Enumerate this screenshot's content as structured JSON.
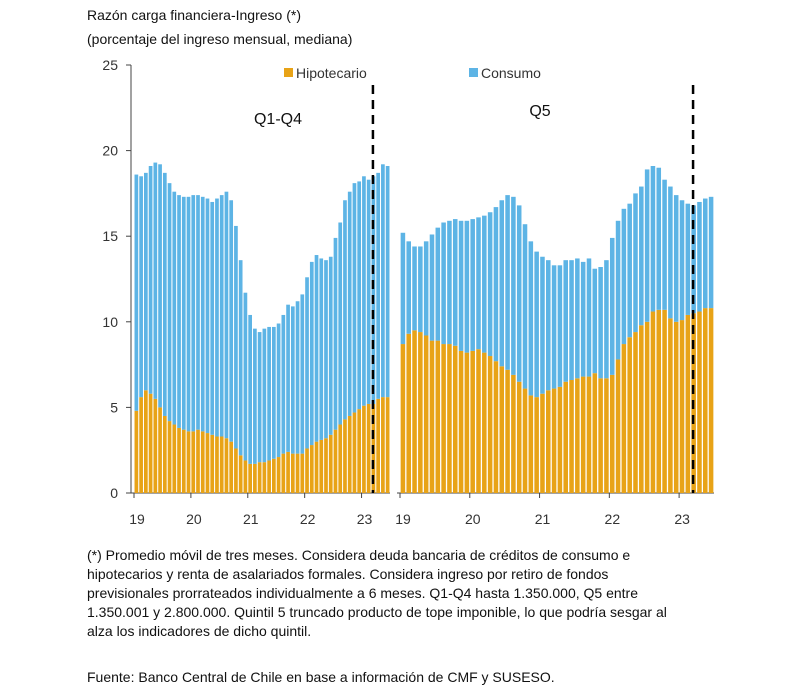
{
  "chart_data": {
    "type": "bar",
    "stacked": true,
    "title": "Razón carga financiera-Ingreso (*)",
    "subtitle": "(porcentaje del ingreso mensual, mediana)",
    "ylim": [
      0,
      25
    ],
    "yticks": [
      "0",
      "5",
      "10",
      "15",
      "20",
      "25"
    ],
    "xticks": [
      "19",
      "20",
      "21",
      "22",
      "23"
    ],
    "frequency": "monthly, Jan 2019 - Jun 2023",
    "legend": [
      {
        "name": "Hipotecario",
        "color": "#E8A317"
      },
      {
        "name": "Consumo",
        "color": "#5DB4E5"
      }
    ],
    "legend_placement": "top",
    "panels": [
      {
        "label": "Q1-Q4",
        "dashed_line_at": 2023.2,
        "series": [
          {
            "name": "Hipotecario",
            "values": [
              4.8,
              5.6,
              6.0,
              5.8,
              5.5,
              5.0,
              4.5,
              4.2,
              4.0,
              3.8,
              3.7,
              3.6,
              3.6,
              3.7,
              3.6,
              3.5,
              3.4,
              3.3,
              3.3,
              3.2,
              3.0,
              2.6,
              2.2,
              1.9,
              1.7,
              1.7,
              1.8,
              1.8,
              1.9,
              2.0,
              2.1,
              2.3,
              2.4,
              2.3,
              2.3,
              2.3,
              2.6,
              2.8,
              3.0,
              3.1,
              3.2,
              3.4,
              3.7,
              4.0,
              4.3,
              4.5,
              4.7,
              4.9,
              5.1,
              5.2,
              5.2,
              5.5,
              5.6,
              5.6
            ]
          },
          {
            "name": "Consumo",
            "values": [
              13.8,
              12.9,
              12.7,
              13.3,
              13.8,
              14.2,
              14.2,
              13.9,
              13.6,
              13.6,
              13.6,
              13.7,
              13.8,
              13.7,
              13.7,
              13.7,
              13.6,
              13.9,
              14.1,
              14.4,
              14.1,
              13.0,
              11.4,
              9.8,
              8.7,
              7.9,
              7.6,
              7.8,
              7.8,
              7.7,
              7.8,
              8.1,
              8.6,
              8.6,
              8.9,
              9.3,
              10.0,
              10.7,
              10.9,
              10.6,
              10.4,
              10.4,
              11.2,
              11.8,
              12.8,
              13.1,
              13.4,
              13.3,
              13.4,
              13.1,
              13.3,
              13.2,
              13.6,
              13.5
            ]
          }
        ]
      },
      {
        "label": "Q5",
        "dashed_line_at": 2023.2,
        "series": [
          {
            "name": "Hipotecario",
            "values": [
              8.7,
              9.3,
              9.5,
              9.4,
              9.2,
              8.9,
              8.9,
              8.7,
              8.7,
              8.6,
              8.3,
              8.2,
              8.3,
              8.4,
              8.2,
              8.0,
              7.7,
              7.4,
              7.2,
              6.9,
              6.5,
              6.1,
              5.7,
              5.6,
              5.8,
              6.0,
              6.1,
              6.2,
              6.5,
              6.6,
              6.7,
              6.8,
              6.8,
              7.0,
              6.7,
              6.7,
              6.9,
              7.8,
              8.7,
              9.1,
              9.4,
              9.8,
              10.0,
              10.6,
              10.7,
              10.7,
              10.2,
              10.0,
              10.1,
              10.4,
              10.5,
              10.6,
              10.8,
              10.8
            ]
          },
          {
            "name": "Consumo",
            "values": [
              6.5,
              5.4,
              4.9,
              5.0,
              5.5,
              6.2,
              6.6,
              7.1,
              7.2,
              7.4,
              7.6,
              7.7,
              7.7,
              7.7,
              8.0,
              8.4,
              9.0,
              9.7,
              10.2,
              10.4,
              10.3,
              9.6,
              9.0,
              8.5,
              8.0,
              7.6,
              7.2,
              7.1,
              7.1,
              7.0,
              7.0,
              6.7,
              6.9,
              6.1,
              6.5,
              6.9,
              8.0,
              8.1,
              7.9,
              7.8,
              8.1,
              8.1,
              8.9,
              8.5,
              8.3,
              7.6,
              7.7,
              7.4,
              7.0,
              6.5,
              6.3,
              6.4,
              6.4,
              6.5
            ]
          }
        ]
      }
    ]
  },
  "note": "(*) Promedio móvil de tres meses. Considera deuda bancaria de créditos de consumo e hipotecarios y renta de asalariados formales. Considera ingreso por retiro de fondos previsionales prorrateados individualmente a 6 meses. Q1-Q4 hasta 1.350.000, Q5 entre 1.350.001 y 2.800.000. Quintil 5 truncado producto de tope imponible, lo que podría sesgar al alza los indicadores de dicho quintil.",
  "source": "Fuente: Banco Central de Chile en base a información de CMF y SUSESO."
}
